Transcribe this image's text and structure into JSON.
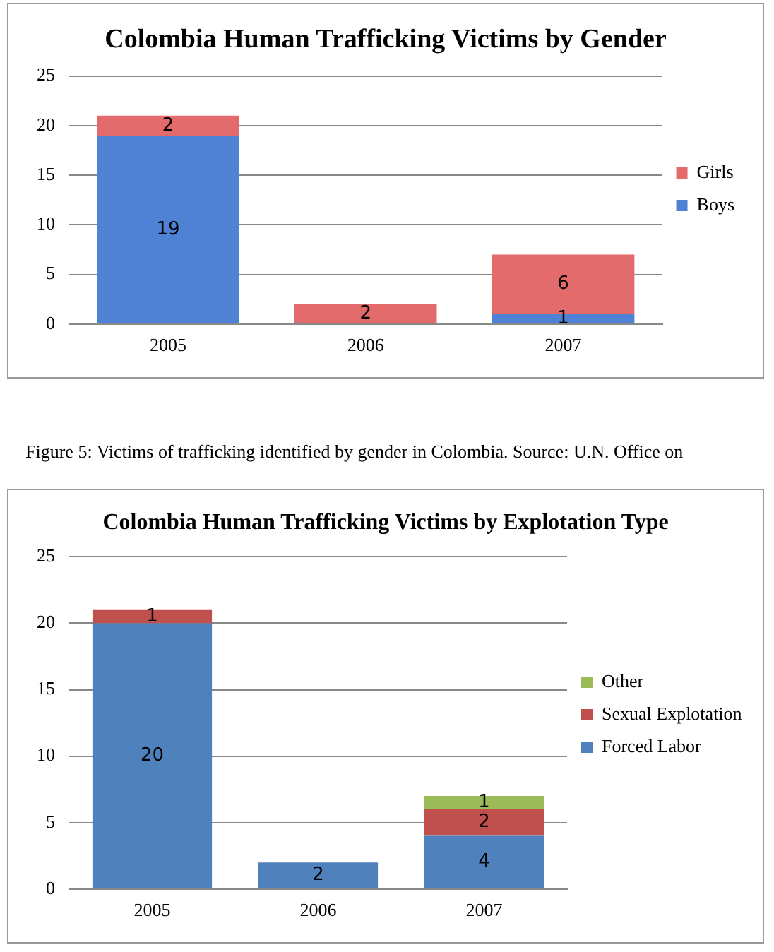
{
  "chart_data": [
    {
      "type": "bar",
      "title": "Colombia Human Trafficking Victims by Gender",
      "categories": [
        "2005",
        "2006",
        "2007"
      ],
      "stacked": true,
      "ylim": [
        0,
        25
      ],
      "yticks": [
        0,
        5,
        10,
        15,
        20,
        25
      ],
      "grid": "y",
      "legend": "right",
      "annotations": [
        "Figure 5: Victims of trafficking identified by gender in Colombia. Source: U.N. Office on"
      ],
      "series": [
        {
          "name": "Boys",
          "color": "#4f81d4",
          "values": [
            19,
            0,
            1
          ],
          "value_labels": [
            "19",
            null,
            "1"
          ]
        },
        {
          "name": "Girls",
          "color": "#e36b6b",
          "values": [
            2,
            2,
            6
          ],
          "value_labels": [
            "2",
            "2",
            "6"
          ]
        }
      ]
    },
    {
      "type": "bar",
      "title": "Colombia Human Trafficking Victims by Explotation Type",
      "categories": [
        "2005",
        "2006",
        "2007"
      ],
      "stacked": true,
      "ylim": [
        0,
        25
      ],
      "yticks": [
        0,
        5,
        10,
        15,
        20,
        25
      ],
      "grid": "y",
      "legend": "right",
      "series": [
        {
          "name": "Forced Labor",
          "color": "#4f81bd",
          "values": [
            20,
            2,
            4
          ],
          "value_labels": [
            "20",
            "2",
            "4"
          ]
        },
        {
          "name": "Sexual Explotation",
          "color": "#c0504d",
          "values": [
            1,
            0,
            2
          ],
          "value_labels": [
            "1",
            null,
            "2"
          ]
        },
        {
          "name": "Other",
          "color": "#9bbb59",
          "values": [
            0,
            0,
            1
          ],
          "value_labels": [
            null,
            null,
            "1"
          ]
        }
      ]
    }
  ]
}
